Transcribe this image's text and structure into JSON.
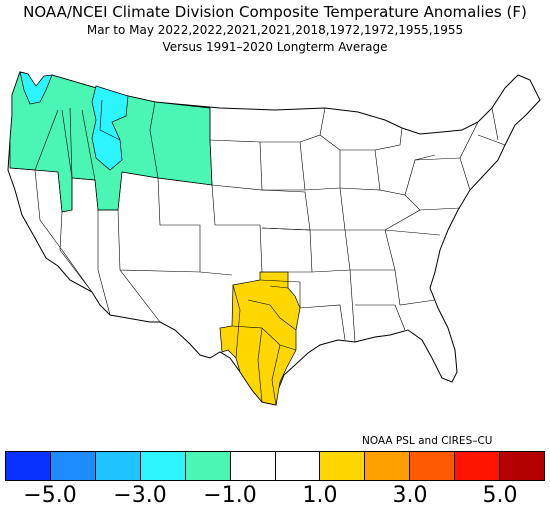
{
  "title": "NOAA/NCEI Climate Division Composite Temperature Anomalies (F)",
  "subtitle": "Mar to May  2022,2022,2021,2021,2018,1972,1972,1955,1955",
  "baseline": "Versus 1991–2020 Longterm Average",
  "credit": "NOAA PSL and CIRES–CU",
  "legend": {
    "colors": [
      "#0a32ff",
      "#1e8cff",
      "#1ec3ff",
      "#2df5ff",
      "#4bf5b4",
      "#ffffff",
      "#ffffff",
      "#ffd700",
      "#ffa000",
      "#ff5a00",
      "#ff1400",
      "#b40000"
    ],
    "tick_labels": [
      "−5.0",
      "−3.0",
      "−1.0",
      "1.0",
      "3.0",
      "5.0"
    ]
  },
  "map": {
    "colors": {
      "cool_anomaly": "#4bf5b4",
      "strong_cool_anomaly": "#2df5ff",
      "warm_anomaly": "#ffd700",
      "neutral": "#ffffff",
      "border": "#000000"
    }
  }
}
